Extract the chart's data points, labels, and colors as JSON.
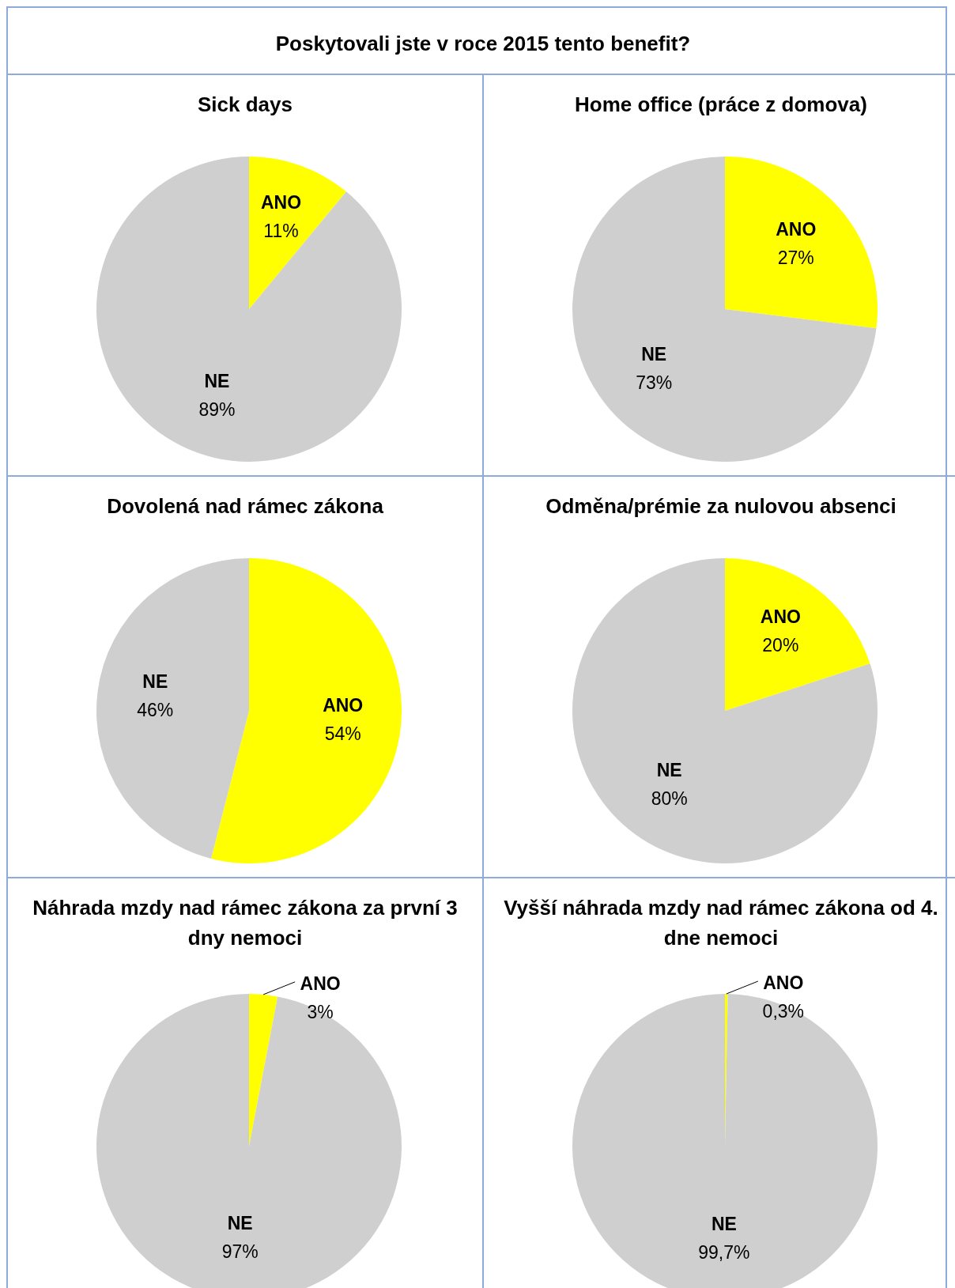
{
  "chart_data": [
    {
      "type": "other",
      "title": "Poskytovali jste v roce 2015 tento benefit?"
    },
    {
      "type": "pie",
      "title": "Sick days",
      "categories": [
        "ANO",
        "NE"
      ],
      "values": [
        11,
        89
      ],
      "colors": [
        "#ffff00",
        "#d0cfcf"
      ],
      "value_labels": [
        "11%",
        "89%"
      ]
    },
    {
      "type": "pie",
      "title": "Home office (práce z domova)",
      "categories": [
        "ANO",
        "NE"
      ],
      "values": [
        27,
        73
      ],
      "colors": [
        "#ffff00",
        "#d0cfcf"
      ],
      "value_labels": [
        "27%",
        "73%"
      ]
    },
    {
      "type": "pie",
      "title": "Dovolená nad rámec zákona",
      "categories": [
        "ANO",
        "NE"
      ],
      "values": [
        54,
        46
      ],
      "colors": [
        "#ffff00",
        "#d0cfcf"
      ],
      "value_labels": [
        "54%",
        "46%"
      ]
    },
    {
      "type": "pie",
      "title": "Odměna/prémie za nulovou absenci",
      "categories": [
        "ANO",
        "NE"
      ],
      "values": [
        20,
        80
      ],
      "colors": [
        "#ffff00",
        "#d0cfcf"
      ],
      "value_labels": [
        "20%",
        "80%"
      ]
    },
    {
      "type": "pie",
      "title": "Náhrada mzdy nad rámec zákona za první 3 dny nemoci",
      "categories": [
        "ANO",
        "NE"
      ],
      "values": [
        3,
        97
      ],
      "colors": [
        "#ffff00",
        "#d0cfcf"
      ],
      "value_labels": [
        "3%",
        "97%"
      ]
    },
    {
      "type": "pie",
      "title": "Vyšší náhrada mzdy nad rámec zákona od 4. dne nemoci",
      "categories": [
        "ANO",
        "NE"
      ],
      "values": [
        0.3,
        99.7
      ],
      "colors": [
        "#ffff00",
        "#d0cfcf"
      ],
      "value_labels": [
        "0,3%",
        "99,7%"
      ]
    }
  ]
}
